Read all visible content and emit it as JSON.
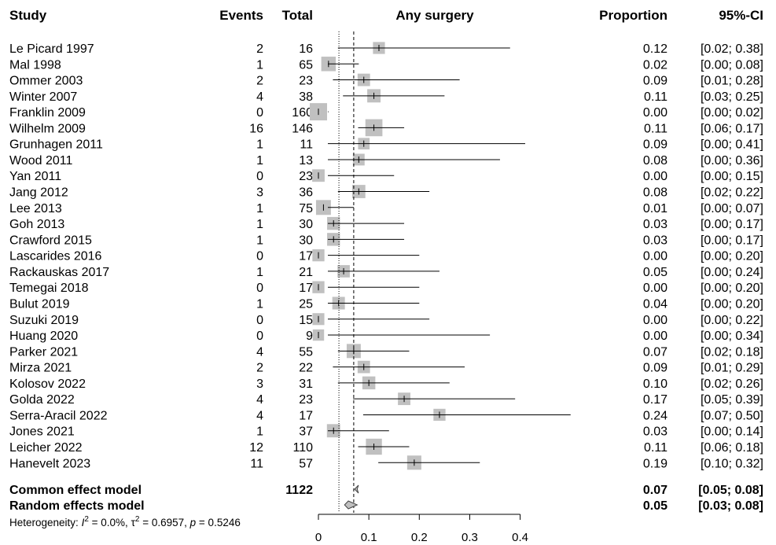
{
  "headers": {
    "study": "Study",
    "events": "Events",
    "total": "Total",
    "outcome": "Any surgery",
    "proportion": "Proportion",
    "ci": "95%-CI"
  },
  "chart_data": {
    "type": "forest",
    "xlim": [
      0,
      0.4
    ],
    "x_ticks": [
      "0",
      "0.1",
      "0.2",
      "0.3",
      "0.4"
    ],
    "common_effect_line": 0.07,
    "random_effects_line": 0.05,
    "studies": [
      {
        "name": "Le Picard 1997",
        "events": "2",
        "total": "16",
        "prop": 0.12,
        "lo": 0.02,
        "hi": 0.38,
        "prop_text": "0.12",
        "ci_text": "[0.02; 0.38]"
      },
      {
        "name": "Mal 1998",
        "events": "1",
        "total": "65",
        "prop": 0.02,
        "lo": 0.0,
        "hi": 0.08,
        "prop_text": "0.02",
        "ci_text": "[0.00; 0.08]"
      },
      {
        "name": "Ommer 2003",
        "events": "2",
        "total": "23",
        "prop": 0.09,
        "lo": 0.01,
        "hi": 0.28,
        "prop_text": "0.09",
        "ci_text": "[0.01; 0.28]"
      },
      {
        "name": "Winter 2007",
        "events": "4",
        "total": "38",
        "prop": 0.11,
        "lo": 0.03,
        "hi": 0.25,
        "prop_text": "0.11",
        "ci_text": "[0.03; 0.25]"
      },
      {
        "name": "Franklin 2009",
        "events": "0",
        "total": "160",
        "prop": 0.0,
        "lo": 0.0,
        "hi": 0.02,
        "prop_text": "0.00",
        "ci_text": "[0.00; 0.02]"
      },
      {
        "name": "Wilhelm 2009",
        "events": "16",
        "total": "146",
        "prop": 0.11,
        "lo": 0.06,
        "hi": 0.17,
        "prop_text": "0.11",
        "ci_text": "[0.06; 0.17]"
      },
      {
        "name": "Grunhagen 2011",
        "events": "1",
        "total": "11",
        "prop": 0.09,
        "lo": 0.0,
        "hi": 0.41,
        "prop_text": "0.09",
        "ci_text": "[0.00; 0.41]"
      },
      {
        "name": "Wood 2011",
        "events": "1",
        "total": "13",
        "prop": 0.08,
        "lo": 0.0,
        "hi": 0.36,
        "prop_text": "0.08",
        "ci_text": "[0.00; 0.36]"
      },
      {
        "name": "Yan 2011",
        "events": "0",
        "total": "23",
        "prop": 0.0,
        "lo": 0.0,
        "hi": 0.15,
        "prop_text": "0.00",
        "ci_text": "[0.00; 0.15]"
      },
      {
        "name": "Jang 2012",
        "events": "3",
        "total": "36",
        "prop": 0.08,
        "lo": 0.02,
        "hi": 0.22,
        "prop_text": "0.08",
        "ci_text": "[0.02; 0.22]"
      },
      {
        "name": "Lee 2013",
        "events": "1",
        "total": "75",
        "prop": 0.01,
        "lo": 0.0,
        "hi": 0.07,
        "prop_text": "0.01",
        "ci_text": "[0.00; 0.07]"
      },
      {
        "name": "Goh 2013",
        "events": "1",
        "total": "30",
        "prop": 0.03,
        "lo": 0.0,
        "hi": 0.17,
        "prop_text": "0.03",
        "ci_text": "[0.00; 0.17]"
      },
      {
        "name": "Crawford 2015",
        "events": "1",
        "total": "30",
        "prop": 0.03,
        "lo": 0.0,
        "hi": 0.17,
        "prop_text": "0.03",
        "ci_text": "[0.00; 0.17]"
      },
      {
        "name": "Lascarides 2016",
        "events": "0",
        "total": "17",
        "prop": 0.0,
        "lo": 0.0,
        "hi": 0.2,
        "prop_text": "0.00",
        "ci_text": "[0.00; 0.20]"
      },
      {
        "name": "Rackauskas 2017",
        "events": "1",
        "total": "21",
        "prop": 0.05,
        "lo": 0.0,
        "hi": 0.24,
        "prop_text": "0.05",
        "ci_text": "[0.00; 0.24]"
      },
      {
        "name": "Temegai 2018",
        "events": "0",
        "total": "17",
        "prop": 0.0,
        "lo": 0.0,
        "hi": 0.2,
        "prop_text": "0.00",
        "ci_text": "[0.00; 0.20]"
      },
      {
        "name": "Bulut 2019",
        "events": "1",
        "total": "25",
        "prop": 0.04,
        "lo": 0.0,
        "hi": 0.2,
        "prop_text": "0.04",
        "ci_text": "[0.00; 0.20]"
      },
      {
        "name": "Suzuki 2019",
        "events": "0",
        "total": "15",
        "prop": 0.0,
        "lo": 0.0,
        "hi": 0.22,
        "prop_text": "0.00",
        "ci_text": "[0.00; 0.22]"
      },
      {
        "name": "Huang 2020",
        "events": "0",
        "total": "9",
        "prop": 0.0,
        "lo": 0.0,
        "hi": 0.34,
        "prop_text": "0.00",
        "ci_text": "[0.00; 0.34]"
      },
      {
        "name": "Parker 2021",
        "events": "4",
        "total": "55",
        "prop": 0.07,
        "lo": 0.02,
        "hi": 0.18,
        "prop_text": "0.07",
        "ci_text": "[0.02; 0.18]"
      },
      {
        "name": "Mirza 2021",
        "events": "2",
        "total": "22",
        "prop": 0.09,
        "lo": 0.01,
        "hi": 0.29,
        "prop_text": "0.09",
        "ci_text": "[0.01; 0.29]"
      },
      {
        "name": "Kolosov 2022",
        "events": "3",
        "total": "31",
        "prop": 0.1,
        "lo": 0.02,
        "hi": 0.26,
        "prop_text": "0.10",
        "ci_text": "[0.02; 0.26]"
      },
      {
        "name": "Golda 2022",
        "events": "4",
        "total": "23",
        "prop": 0.17,
        "lo": 0.05,
        "hi": 0.39,
        "prop_text": "0.17",
        "ci_text": "[0.05; 0.39]"
      },
      {
        "name": "Serra-Aracil 2022",
        "events": "4",
        "total": "17",
        "prop": 0.24,
        "lo": 0.07,
        "hi": 0.5,
        "prop_text": "0.24",
        "ci_text": "[0.07; 0.50]"
      },
      {
        "name": "Jones 2021",
        "events": "1",
        "total": "37",
        "prop": 0.03,
        "lo": 0.0,
        "hi": 0.14,
        "prop_text": "0.03",
        "ci_text": "[0.00; 0.14]"
      },
      {
        "name": "Leicher 2022",
        "events": "12",
        "total": "110",
        "prop": 0.11,
        "lo": 0.06,
        "hi": 0.18,
        "prop_text": "0.11",
        "ci_text": "[0.06; 0.18]"
      },
      {
        "name": "Hanevelt 2023",
        "events": "11",
        "total": "57",
        "prop": 0.19,
        "lo": 0.1,
        "hi": 0.32,
        "prop_text": "0.19",
        "ci_text": "[0.10; 0.32]"
      }
    ],
    "common": {
      "label": "Common effect model",
      "total": "1122",
      "est": 0.07,
      "lo": 0.05,
      "hi": 0.08,
      "prop_text": "0.07",
      "ci_text": "[0.05; 0.08]"
    },
    "random": {
      "label": "Random effects model",
      "est": 0.05,
      "lo": 0.03,
      "hi": 0.08,
      "prop_text": "0.05",
      "ci_text": "[0.03; 0.08]"
    },
    "heterogeneity": {
      "label": "Heterogeneity:",
      "i2": "0.0%",
      "tau2": "0.6957",
      "p": "0.5246"
    },
    "colors": {
      "square": "#c0c0c0",
      "line": "#000000",
      "diamond": "#c0c0c0"
    }
  }
}
